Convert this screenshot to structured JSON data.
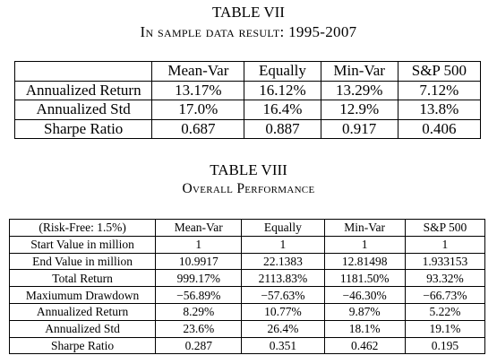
{
  "table7": {
    "title": "TABLE VII",
    "subtitle": "In sample data result: 1995-2007",
    "header": [
      "",
      "Mean-Var",
      "Equally",
      "Min-Var",
      "S&P 500"
    ],
    "rows": [
      [
        "Annualized Return",
        "13.17%",
        "16.12%",
        "13.29%",
        "7.12%"
      ],
      [
        "Annualized Std",
        "17.0%",
        "16.4%",
        "12.9%",
        "13.8%"
      ],
      [
        "Sharpe Ratio",
        "0.687",
        "0.887",
        "0.917",
        "0.406"
      ]
    ]
  },
  "table8": {
    "title": "TABLE VIII",
    "subtitle": "Overall Performance",
    "header": [
      "(Risk-Free: 1.5%)",
      "Mean-Var",
      "Equally",
      "Min-Var",
      "S&P 500"
    ],
    "rows": [
      [
        "Start Value in million",
        "1",
        "1",
        "1",
        "1"
      ],
      [
        "End Value in million",
        "10.9917",
        "22.1383",
        "12.81498",
        "1.933153"
      ],
      [
        "Total Return",
        "999.17%",
        "2113.83%",
        "1181.50%",
        "93.32%"
      ],
      [
        "Maxiumum Drawdown",
        "−56.89%",
        "−57.63%",
        "−46.30%",
        "−66.73%"
      ],
      [
        "Annualized Return",
        "8.29%",
        "10.77%",
        "9.87%",
        "5.22%"
      ],
      [
        "Annualized Std",
        "23.6%",
        "26.4%",
        "18.1%",
        "19.1%"
      ],
      [
        "Sharpe Ratio",
        "0.287",
        "0.351",
        "0.462",
        "0.195"
      ]
    ]
  }
}
